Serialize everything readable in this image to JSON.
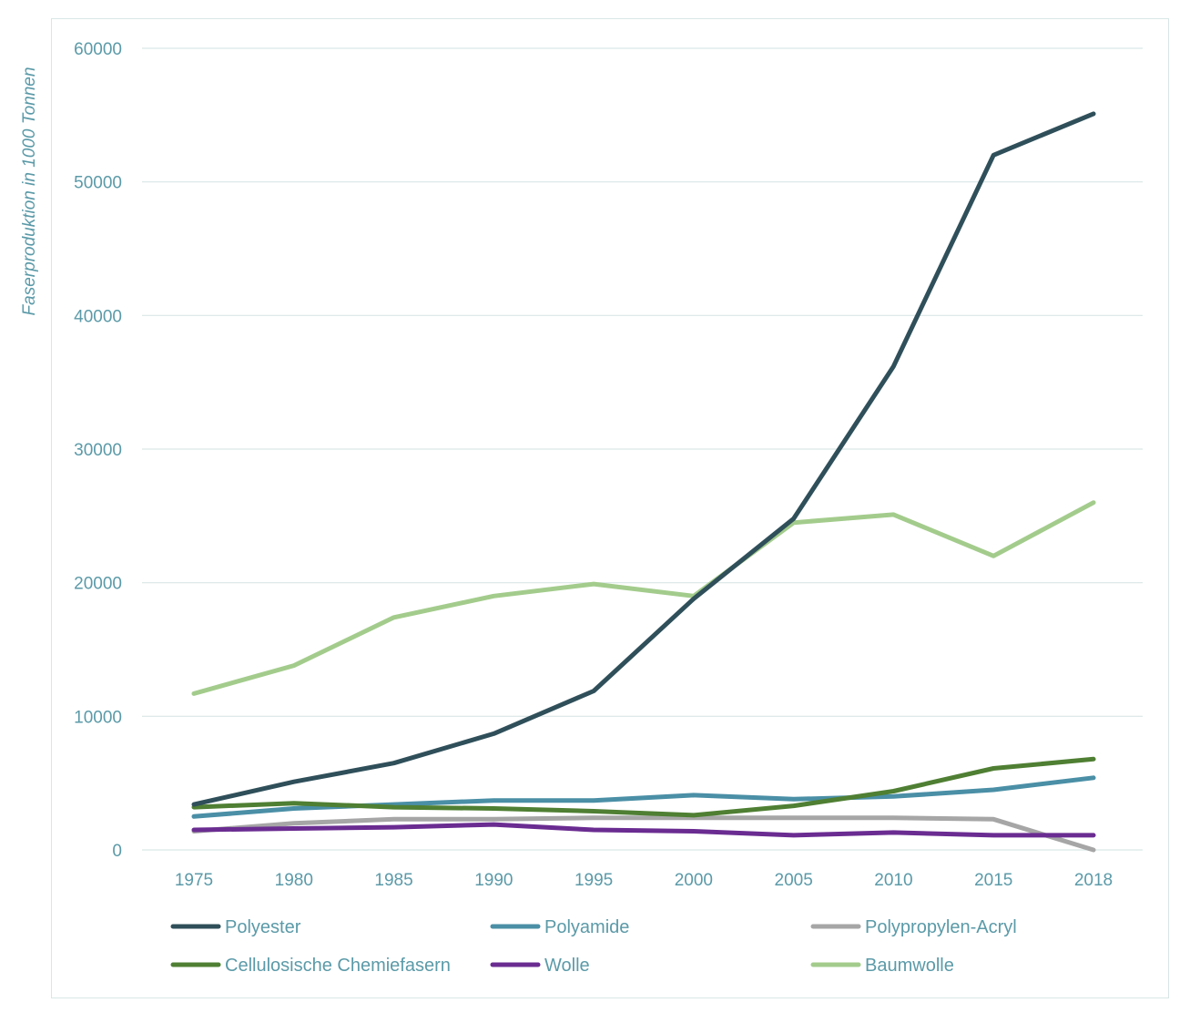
{
  "chart_data": {
    "type": "line",
    "title": "",
    "xlabel": "",
    "ylabel": "Faserproduktion in 1000 Tonnen",
    "categories": [
      "1975",
      "1980",
      "1985",
      "1990",
      "1995",
      "2000",
      "2005",
      "2010",
      "2015",
      "2018"
    ],
    "yticks": [
      "0",
      "10000",
      "20000",
      "30000",
      "40000",
      "50000",
      "60000"
    ],
    "ylim": [
      0,
      60000
    ],
    "grid": "horizontal",
    "legend_position": "bottom",
    "series": [
      {
        "name": "Polyester",
        "color": "#2f4f5a",
        "values": [
          3400,
          5100,
          6500,
          8700,
          11900,
          18800,
          24800,
          36200,
          52000,
          55100
        ]
      },
      {
        "name": "Polyamide",
        "color": "#4a8fa6",
        "values": [
          2500,
          3100,
          3400,
          3700,
          3700,
          4100,
          3800,
          4000,
          4500,
          5400
        ]
      },
      {
        "name": "Polypropylen-Acryl",
        "color": "#a6a6a6",
        "values": [
          1400,
          2000,
          2300,
          2300,
          2400,
          2400,
          2400,
          2400,
          2300,
          0
        ]
      },
      {
        "name": "Cellulosische Chemiefasern",
        "color": "#4f7f33",
        "values": [
          3200,
          3500,
          3200,
          3100,
          2900,
          2600,
          3300,
          4400,
          6100,
          6800
        ]
      },
      {
        "name": "Wolle",
        "color": "#6a2c91",
        "values": [
          1500,
          1600,
          1700,
          1900,
          1500,
          1400,
          1100,
          1300,
          1100,
          1100
        ]
      },
      {
        "name": "Baumwolle",
        "color": "#a3cc8c",
        "values": [
          11700,
          13800,
          17400,
          19000,
          19900,
          19000,
          24500,
          25100,
          22000,
          26000
        ]
      }
    ]
  }
}
